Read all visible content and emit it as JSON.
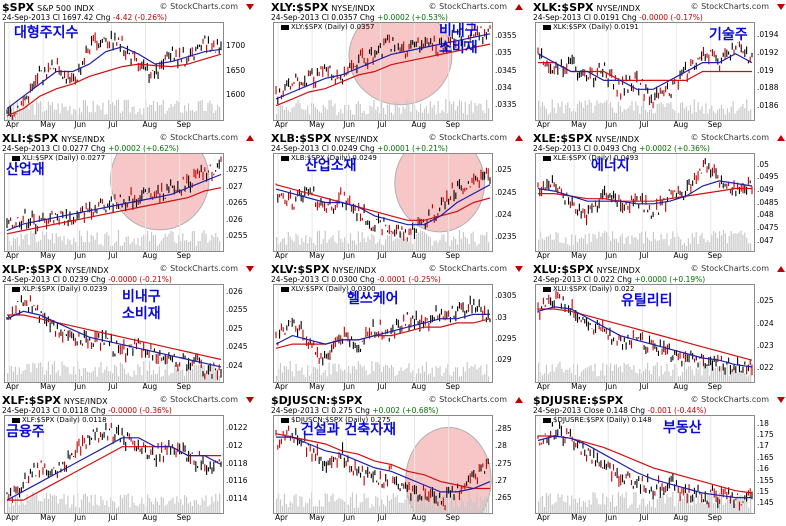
{
  "chart_data": [
    {
      "type": "line",
      "symbol": "$SPX",
      "name": "S&P 500",
      "exchange": "INDX",
      "date": "24-Sep-2013",
      "close_label": "Cl",
      "close": "1697.42",
      "change": "-4.42 (-0.26%)",
      "change_dir": "down",
      "legend": "",
      "korean": [
        "대형주지수"
      ],
      "yticks": [
        1600,
        1650,
        1700
      ],
      "ylim": [
        1560,
        1740
      ],
      "months": [
        "Apr",
        "May",
        "Jun",
        "Jul",
        "Aug",
        "Sep"
      ],
      "x": [
        "Apr",
        "May",
        "Jun",
        "Jul",
        "Aug",
        "Sep",
        "Sep-24"
      ],
      "close_path": [
        1560,
        1590,
        1640,
        1665,
        1625,
        1700,
        1720,
        1705,
        1660,
        1640,
        1690,
        1670,
        1710,
        1697
      ],
      "ma_short": [
        1575,
        1600,
        1625,
        1650,
        1650,
        1665,
        1690,
        1700,
        1685,
        1665,
        1670,
        1680,
        1690,
        1695
      ],
      "ma_long": [
        1560,
        1575,
        1600,
        1615,
        1625,
        1640,
        1650,
        1660,
        1665,
        1662,
        1660,
        1665,
        1675,
        1685
      ],
      "highlight": false
    },
    {
      "type": "line",
      "symbol": "XLY:$SPX",
      "name": "",
      "exchange": "NYSE/INDX",
      "date": "24-Sep-2013",
      "close_label": "Cl",
      "close": "0.0357",
      "change": "+0.0002 (+0.53%)",
      "change_dir": "up",
      "legend": "XLY:$SPX (Daily) 0.0357",
      "korean": [
        "비내구",
        "소비재"
      ],
      "yticks": [
        0.0335,
        0.034,
        0.0345,
        0.035,
        0.0355
      ],
      "ylim": [
        0.0332,
        0.0358
      ],
      "months": [
        "Apr",
        "May",
        "Jun",
        "Jul",
        "Aug",
        "Sep"
      ],
      "x": [
        "Apr",
        "May",
        "Jun",
        "Jul",
        "Aug",
        "Sep",
        "Sep-24"
      ],
      "close_path": [
        0.0338,
        0.0341,
        0.0343,
        0.0345,
        0.0342,
        0.0348,
        0.035,
        0.0353,
        0.0351,
        0.0354,
        0.0352,
        0.0355,
        0.0356,
        0.0357
      ],
      "ma_short": [
        0.0337,
        0.0339,
        0.0341,
        0.0343,
        0.0344,
        0.0346,
        0.0348,
        0.035,
        0.0351,
        0.0352,
        0.0353,
        0.0354,
        0.0355,
        0.0356
      ],
      "ma_long": [
        0.0335,
        0.0337,
        0.0339,
        0.034,
        0.0342,
        0.0344,
        0.0345,
        0.0347,
        0.0348,
        0.0349,
        0.035,
        0.0351,
        0.0352,
        0.0353
      ],
      "highlight": true,
      "hl": [
        0.58,
        0.34,
        0.38,
        0.42
      ]
    },
    {
      "type": "line",
      "symbol": "XLK:$SPX",
      "name": "",
      "exchange": "NYSE/INDX",
      "date": "24-Sep-2013",
      "close_label": "Cl",
      "close": "0.0191",
      "change": "-0.0000 (-0.17%)",
      "change_dir": "down",
      "legend": "XLK:$SPX (Daily) 0.0191",
      "korean": [
        "기술주"
      ],
      "yticks": [
        0.0186,
        0.0188,
        0.019,
        0.0192,
        0.0194
      ],
      "ylim": [
        0.0185,
        0.0195
      ],
      "months": [
        "Apr",
        "May",
        "Jun",
        "Jul",
        "Aug",
        "Sep"
      ],
      "x": [
        "Apr",
        "May",
        "Jun",
        "Jul",
        "Aug",
        "Sep",
        "Sep-24"
      ],
      "close_path": [
        0.0192,
        0.019,
        0.0191,
        0.0189,
        0.019,
        0.0188,
        0.0189,
        0.0187,
        0.0188,
        0.019,
        0.0192,
        0.0191,
        0.0193,
        0.0191
      ],
      "ma_short": [
        0.0192,
        0.0191,
        0.019,
        0.019,
        0.0189,
        0.0189,
        0.0188,
        0.0188,
        0.0189,
        0.019,
        0.0191,
        0.0191,
        0.0192,
        0.0191
      ],
      "ma_long": [
        0.0191,
        0.0191,
        0.019,
        0.019,
        0.019,
        0.0189,
        0.0189,
        0.0189,
        0.0189,
        0.0189,
        0.019,
        0.019,
        0.019,
        0.019
      ],
      "highlight": false
    },
    {
      "type": "line",
      "symbol": "XLI:$SPX",
      "name": "",
      "exchange": "NYSE/INDX",
      "date": "24-Sep-2013",
      "close_label": "Cl",
      "close": "0.0277",
      "change": "+0.0002 (+0.62%)",
      "change_dir": "up",
      "legend": "XLI:$SPX (Daily) 0.0277",
      "korean": [
        "산업재"
      ],
      "yticks": [
        0.0255,
        0.026,
        0.0265,
        0.027,
        0.0275
      ],
      "ylim": [
        0.0252,
        0.0279
      ],
      "months": [
        "Apr",
        "May",
        "Jun",
        "Jul",
        "Aug",
        "Sep"
      ],
      "x": [
        "Apr",
        "May",
        "Jun",
        "Jul",
        "Aug",
        "Sep",
        "Sep-24"
      ],
      "close_path": [
        0.0258,
        0.0261,
        0.0259,
        0.0262,
        0.026,
        0.0264,
        0.0265,
        0.0266,
        0.0267,
        0.0268,
        0.0269,
        0.0272,
        0.0274,
        0.0277
      ],
      "ma_short": [
        0.0257,
        0.0259,
        0.026,
        0.0261,
        0.0262,
        0.0263,
        0.0264,
        0.0265,
        0.0266,
        0.0267,
        0.0268,
        0.027,
        0.0272,
        0.0274
      ],
      "ma_long": [
        0.0256,
        0.0257,
        0.0258,
        0.0259,
        0.026,
        0.0261,
        0.0262,
        0.0263,
        0.0264,
        0.0265,
        0.0266,
        0.0267,
        0.0269,
        0.027
      ],
      "highlight": true,
      "hl": [
        0.71,
        0.26,
        0.36,
        0.44
      ]
    },
    {
      "type": "line",
      "symbol": "XLB:$SPX",
      "name": "",
      "exchange": "NYSE/INDX",
      "date": "24-Sep-2013",
      "close_label": "Cl",
      "close": "0.0249",
      "change": "+0.0001 (+0.21%)",
      "change_dir": "up",
      "legend": "XLB:$SPX (Daily) 0.0249",
      "korean": [
        "산업소재"
      ],
      "yticks": [
        0.0235,
        0.024,
        0.0245,
        0.025
      ],
      "ylim": [
        0.0233,
        0.0253
      ],
      "months": [
        "Apr",
        "May",
        "Jun",
        "Jul",
        "Aug",
        "Sep"
      ],
      "x": [
        "Apr",
        "May",
        "Jun",
        "Jul",
        "Aug",
        "Sep",
        "Sep-24"
      ],
      "close_path": [
        0.0246,
        0.0243,
        0.0245,
        0.0242,
        0.0244,
        0.0241,
        0.0238,
        0.0237,
        0.0236,
        0.0239,
        0.0242,
        0.0246,
        0.0248,
        0.0249
      ],
      "ma_short": [
        0.0246,
        0.0245,
        0.0244,
        0.0243,
        0.0243,
        0.0242,
        0.024,
        0.0239,
        0.0238,
        0.0238,
        0.024,
        0.0243,
        0.0245,
        0.0247
      ],
      "ma_long": [
        0.0247,
        0.0246,
        0.0245,
        0.0244,
        0.0243,
        0.0242,
        0.0241,
        0.024,
        0.0239,
        0.0239,
        0.024,
        0.0241,
        0.0243,
        0.0244
      ],
      "highlight": true,
      "hl": [
        0.76,
        0.3,
        0.32,
        0.42
      ]
    },
    {
      "type": "line",
      "symbol": "XLE:$SPX",
      "name": "",
      "exchange": "NYSE/INDX",
      "date": "24-Sep-2013",
      "close_label": "Cl",
      "close": "0.0493",
      "change": "+0.0002 (+0.36%)",
      "change_dir": "up",
      "legend": "XLE:$SPX (Daily) 0.0493",
      "korean": [
        "에너지"
      ],
      "yticks": [
        0.047,
        0.0475,
        0.048,
        0.0485,
        0.049,
        0.0495,
        0.05
      ],
      "ylim": [
        0.0468,
        0.0503
      ],
      "months": [
        "Apr",
        "May",
        "Jun",
        "Jul",
        "Aug",
        "Sep"
      ],
      "x": [
        "Apr",
        "May",
        "Jun",
        "Jul",
        "Aug",
        "Sep",
        "Sep-24"
      ],
      "close_path": [
        0.049,
        0.0493,
        0.0485,
        0.048,
        0.0488,
        0.0485,
        0.0486,
        0.0482,
        0.0488,
        0.049,
        0.05,
        0.0495,
        0.049,
        0.0493
      ],
      "ma_short": [
        0.0491,
        0.049,
        0.0488,
        0.0486,
        0.0486,
        0.0486,
        0.0485,
        0.0485,
        0.0486,
        0.0488,
        0.0492,
        0.0494,
        0.0493,
        0.0492
      ],
      "ma_long": [
        0.0489,
        0.0489,
        0.0488,
        0.0487,
        0.0487,
        0.0486,
        0.0486,
        0.0486,
        0.0487,
        0.0488,
        0.0489,
        0.049,
        0.0491,
        0.0491
      ],
      "highlight": false
    },
    {
      "type": "line",
      "symbol": "XLP:$SPX",
      "name": "",
      "exchange": "NYSE/INDX",
      "date": "24-Sep-2013",
      "close_label": "Cl",
      "close": "0.0239",
      "change": "-0.0000 (-0.21%)",
      "change_dir": "down",
      "legend": "XLP:$SPX (Daily) 0.0239",
      "korean": [
        "비내구",
        "소비재"
      ],
      "yticks": [
        0.024,
        0.0245,
        0.025,
        0.0255,
        0.026
      ],
      "ylim": [
        0.0237,
        0.0261
      ],
      "months": [
        "Apr",
        "May",
        "Jun",
        "Jul",
        "Aug",
        "Sep"
      ],
      "x": [
        "Apr",
        "May",
        "Jun",
        "Jul",
        "Aug",
        "Sep",
        "Sep-24"
      ],
      "close_path": [
        0.0252,
        0.0258,
        0.0254,
        0.025,
        0.0248,
        0.0246,
        0.0247,
        0.0244,
        0.0245,
        0.0243,
        0.0242,
        0.0241,
        0.024,
        0.0239
      ],
      "ma_short": [
        0.0253,
        0.0255,
        0.0254,
        0.0252,
        0.025,
        0.0248,
        0.0247,
        0.0246,
        0.0245,
        0.0244,
        0.0243,
        0.0242,
        0.0241,
        0.024
      ],
      "ma_long": [
        0.0254,
        0.0254,
        0.0253,
        0.0252,
        0.0251,
        0.025,
        0.0249,
        0.0248,
        0.0247,
        0.0246,
        0.0245,
        0.0244,
        0.0243,
        0.0242
      ],
      "highlight": false
    },
    {
      "type": "line",
      "symbol": "XLV:$SPX",
      "name": "",
      "exchange": "NYSE/INDX",
      "date": "24-Sep-2013",
      "close_label": "Cl",
      "close": "0.0300",
      "change": "-0.0001 (-0.25%)",
      "change_dir": "down",
      "legend": "XLV:$SPX (Daily) 0.0300",
      "korean": [
        "헬쓰케어"
      ],
      "yticks": [
        0.029,
        0.0295,
        0.03,
        0.0305
      ],
      "ylim": [
        0.0286,
        0.0307
      ],
      "months": [
        "Apr",
        "May",
        "Jun",
        "Jul",
        "Aug",
        "Sep"
      ],
      "x": [
        "Apr",
        "May",
        "Jun",
        "Jul",
        "Aug",
        "Sep",
        "Sep-24"
      ],
      "close_path": [
        0.0295,
        0.03,
        0.0294,
        0.029,
        0.0296,
        0.0293,
        0.0298,
        0.0296,
        0.03,
        0.0298,
        0.0302,
        0.0301,
        0.0303,
        0.03
      ],
      "ma_short": [
        0.0294,
        0.0296,
        0.0295,
        0.0294,
        0.0295,
        0.0295,
        0.0296,
        0.0297,
        0.0298,
        0.0299,
        0.03,
        0.03,
        0.0301,
        0.0301
      ],
      "ma_long": [
        0.0293,
        0.0294,
        0.0294,
        0.0294,
        0.0295,
        0.0295,
        0.0296,
        0.0296,
        0.0297,
        0.0298,
        0.0298,
        0.0299,
        0.0299,
        0.03
      ],
      "highlight": false
    },
    {
      "type": "line",
      "symbol": "XLU:$SPX",
      "name": "",
      "exchange": "NYSE/INDX",
      "date": "24-Sep-2013",
      "close_label": "Cl",
      "close": "0.022",
      "change": "+0.0000 (+0.19%)",
      "change_dir": "up",
      "legend": "XLU:$SPX (Daily) 0.022",
      "korean": [
        "유틸리티"
      ],
      "yticks": [
        0.022,
        0.023,
        0.024,
        0.025
      ],
      "ylim": [
        0.0216,
        0.0256
      ],
      "months": [
        "Apr",
        "May",
        "Jun",
        "Jul",
        "Aug",
        "Sep"
      ],
      "x": [
        "Apr",
        "May",
        "Jun",
        "Jul",
        "Aug",
        "Sep",
        "Sep-24"
      ],
      "close_path": [
        0.0245,
        0.0252,
        0.0248,
        0.024,
        0.0236,
        0.0232,
        0.0234,
        0.0229,
        0.0227,
        0.0226,
        0.0224,
        0.0223,
        0.0221,
        0.022
      ],
      "ma_short": [
        0.0246,
        0.0248,
        0.0247,
        0.0243,
        0.0239,
        0.0235,
        0.0233,
        0.0231,
        0.0229,
        0.0227,
        0.0225,
        0.0224,
        0.0222,
        0.0221
      ],
      "ma_long": [
        0.0247,
        0.0247,
        0.0246,
        0.0244,
        0.0242,
        0.024,
        0.0238,
        0.0236,
        0.0234,
        0.0232,
        0.023,
        0.0228,
        0.0226,
        0.0224
      ],
      "highlight": false
    },
    {
      "type": "line",
      "symbol": "XLF:$SPX",
      "name": "",
      "exchange": "NYSE/INDX",
      "date": "24-Sep-2013",
      "close_label": "Cl",
      "close": "0.0118",
      "change": "-0.0000 (-0.36%)",
      "change_dir": "down",
      "legend": "XLF:$SPX (Daily) 0.0118",
      "korean": [
        "금융주"
      ],
      "yticks": [
        0.0114,
        0.0116,
        0.0118,
        0.012,
        0.0122
      ],
      "ylim": [
        0.0113,
        0.0123
      ],
      "months": [
        "Apr",
        "May",
        "Jun",
        "Jul",
        "Aug",
        "Sep"
      ],
      "x": [
        "Apr",
        "May",
        "Jun",
        "Jul",
        "Aug",
        "Sep",
        "Sep-24"
      ],
      "close_path": [
        0.0114,
        0.0116,
        0.0118,
        0.0117,
        0.0119,
        0.0121,
        0.0122,
        0.0121,
        0.012,
        0.0119,
        0.012,
        0.0119,
        0.0118,
        0.0118
      ],
      "ma_short": [
        0.0114,
        0.0115,
        0.0116,
        0.0117,
        0.0118,
        0.0119,
        0.012,
        0.0121,
        0.0121,
        0.012,
        0.012,
        0.0119,
        0.0119,
        0.0118
      ],
      "ma_long": [
        0.0114,
        0.0114,
        0.0115,
        0.0116,
        0.0117,
        0.0118,
        0.0119,
        0.012,
        0.012,
        0.012,
        0.012,
        0.0119,
        0.0119,
        0.0119
      ],
      "highlight": false
    },
    {
      "type": "line",
      "symbol": "$DJUSCN:$SPX",
      "name": "",
      "exchange": "",
      "date": "24-Sep-2013",
      "close_label": "Cl",
      "close": "0.275",
      "change": "+0.002 (+0.68%)",
      "change_dir": "up",
      "legend": "$DJUSCN:$SPX (Daily) 0.275",
      "korean": [
        "건설과 건축자재"
      ],
      "yticks": [
        0.265,
        0.27,
        0.275,
        0.28,
        0.285
      ],
      "ylim": [
        0.262,
        0.288
      ],
      "months": [
        "Apr",
        "May",
        "Jun",
        "Jul",
        "Aug",
        "Sep"
      ],
      "x": [
        "Apr",
        "May",
        "Jun",
        "Jul",
        "Aug",
        "Sep",
        "Sep-24"
      ],
      "close_path": [
        0.282,
        0.285,
        0.279,
        0.276,
        0.278,
        0.273,
        0.27,
        0.272,
        0.268,
        0.266,
        0.264,
        0.267,
        0.271,
        0.275
      ],
      "ma_short": [
        0.283,
        0.283,
        0.281,
        0.279,
        0.278,
        0.276,
        0.274,
        0.273,
        0.271,
        0.269,
        0.267,
        0.267,
        0.268,
        0.27
      ],
      "ma_long": [
        0.284,
        0.283,
        0.282,
        0.281,
        0.279,
        0.278,
        0.276,
        0.275,
        0.273,
        0.272,
        0.27,
        0.269,
        0.268,
        0.268
      ],
      "highlight": true,
      "hl": [
        0.8,
        0.66,
        0.3,
        0.46
      ]
    },
    {
      "type": "line",
      "symbol": "$DJUSRE:$SPX",
      "name": "",
      "exchange": "",
      "date": "24-Sep-2013",
      "close_label": "Close",
      "close": "0.148",
      "change": "-0.001 (-0.44%)",
      "change_dir": "down",
      "legend": "$DJUSRE:$SPX (Daily) 0.148",
      "korean": [
        "부동산"
      ],
      "yticks": [
        0.145,
        0.15,
        0.155,
        0.16,
        0.165,
        0.17,
        0.175,
        0.18
      ],
      "ylim": [
        0.143,
        0.182
      ],
      "months": [
        "Apr",
        "May",
        "Jun",
        "Jul",
        "Aug",
        "Sep"
      ],
      "x": [
        "Apr",
        "May",
        "Jun",
        "Jul",
        "Aug",
        "Sep",
        "Sep-24"
      ],
      "close_path": [
        0.172,
        0.178,
        0.174,
        0.168,
        0.162,
        0.158,
        0.155,
        0.152,
        0.154,
        0.15,
        0.148,
        0.149,
        0.147,
        0.148
      ],
      "ma_short": [
        0.173,
        0.175,
        0.174,
        0.171,
        0.167,
        0.163,
        0.159,
        0.156,
        0.154,
        0.152,
        0.15,
        0.149,
        0.148,
        0.148
      ],
      "ma_long": [
        0.175,
        0.175,
        0.174,
        0.172,
        0.17,
        0.167,
        0.164,
        0.161,
        0.159,
        0.157,
        0.155,
        0.153,
        0.151,
        0.15
      ],
      "highlight": false
    }
  ],
  "watermark": "© StockCharts.com",
  "colors": {
    "price": "#000000",
    "bar_down": "#c00000",
    "ma_short": "#1f1fa8",
    "ma_long": "#d01010",
    "volume": "#c8c8c8",
    "highlight": "#f2a0a0",
    "korean_label": "#0a0ad8"
  }
}
